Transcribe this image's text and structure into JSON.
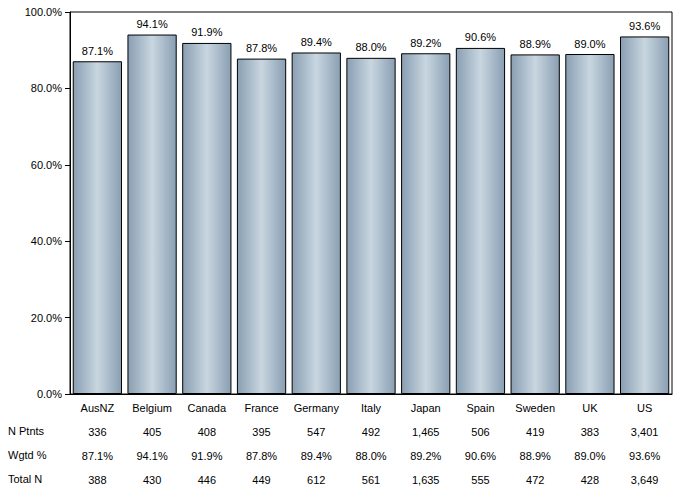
{
  "chart_data": {
    "type": "bar",
    "categories": [
      "AusNZ",
      "Belgium",
      "Canada",
      "France",
      "Germany",
      "Italy",
      "Japan",
      "Spain",
      "Sweden",
      "UK",
      "US"
    ],
    "values": [
      87.1,
      94.1,
      91.9,
      87.8,
      89.4,
      88.0,
      89.2,
      90.6,
      88.9,
      89.0,
      93.6
    ],
    "value_labels": [
      "87.1%",
      "94.1%",
      "91.9%",
      "87.8%",
      "89.4%",
      "88.0%",
      "89.2%",
      "90.6%",
      "88.9%",
      "89.0%",
      "93.6%"
    ],
    "color": "#c8d6e0",
    "ylim": [
      0,
      100
    ],
    "yticks": [
      {
        "value": 0,
        "label": "0.0%"
      },
      {
        "value": 20,
        "label": "20.0%"
      },
      {
        "value": 40,
        "label": "40.0%"
      },
      {
        "value": 60,
        "label": "60.0%"
      },
      {
        "value": 80,
        "label": "80.0%"
      },
      {
        "value": 100,
        "label": "100.0%"
      }
    ],
    "grid": false,
    "data_labels": true,
    "table": {
      "rows": [
        {
          "label": "N Ptnts",
          "cells": [
            "336",
            "405",
            "408",
            "395",
            "547",
            "492",
            "1,465",
            "506",
            "419",
            "383",
            "3,401"
          ]
        },
        {
          "label": "Wgtd %",
          "cells": [
            "87.1%",
            "94.1%",
            "91.9%",
            "87.8%",
            "89.4%",
            "88.0%",
            "89.2%",
            "90.6%",
            "88.9%",
            "89.0%",
            "93.6%"
          ]
        },
        {
          "label": "Total N",
          "cells": [
            "388",
            "430",
            "446",
            "449",
            "612",
            "561",
            "1,635",
            "555",
            "472",
            "428",
            "3,649"
          ]
        }
      ]
    }
  }
}
